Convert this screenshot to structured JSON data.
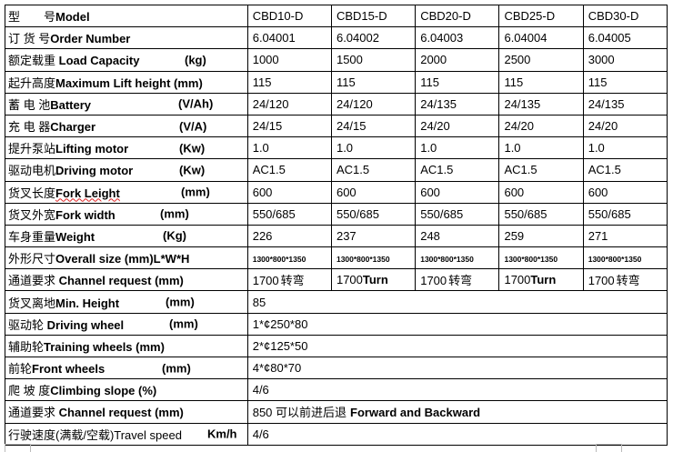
{
  "spec_table": {
    "rows": [
      {
        "cn": "型　　号",
        "en": "Model",
        "unit": "",
        "values": [
          "CBD10-D",
          "CBD15-D",
          "CBD20-D",
          "CBD25-D",
          "CBD30-D"
        ]
      },
      {
        "cn": "订 货 号",
        "en": "Order Number",
        "unit": "",
        "values": [
          "6.04001",
          "6.04002",
          "6.04003",
          "6.04004",
          "6.04005"
        ]
      },
      {
        "cn": "额定载重 ",
        "en": "Load Capacity",
        "unit": "(kg)",
        "values": [
          "1000",
          "1500",
          "2000",
          "2500",
          "3000"
        ]
      },
      {
        "cn": "起升高度",
        "en": "Maximum Lift height (mm)",
        "unit": "",
        "values": [
          "115",
          "115",
          "115",
          "115",
          "115"
        ]
      },
      {
        "cn": "蓄 电 池",
        "en": "Battery",
        "unit": "(V/Ah)",
        "values": [
          "24/120",
          "24/120",
          "24/135",
          "24/135",
          "24/135"
        ]
      },
      {
        "cn": "充 电 器",
        "en": "Charger",
        "unit": "(V/A)",
        "values": [
          "24/15",
          "24/15",
          "24/20",
          "24/20",
          "24/20"
        ]
      },
      {
        "cn": "提升泵站",
        "en": "Lifting motor",
        "unit": "(Kw)",
        "values": [
          "1.0",
          "1.0",
          "1.0",
          "1.0",
          "1.0"
        ]
      },
      {
        "cn": "驱动电机",
        "en": "Driving motor",
        "unit": "(Kw)",
        "values": [
          "AC1.5",
          "AC1.5",
          "AC1.5",
          "AC1.5",
          "AC1.5"
        ]
      },
      {
        "cn": "货叉长度",
        "en": "Fork Leight",
        "unit": "(mm)",
        "values": [
          "600",
          "600",
          "600",
          "600",
          "600"
        ]
      },
      {
        "cn": "货叉外宽",
        "en": "Fork width",
        "unit": "(mm)",
        "values": [
          "550/685",
          "550/685",
          "550/685",
          "550/685",
          "550/685"
        ]
      },
      {
        "cn": "车身重量",
        "en": "Weight",
        "unit": "(Kg)",
        "values": [
          "226",
          "237",
          "248",
          "259",
          "271"
        ]
      },
      {
        "cn": "外形尺寸",
        "en": "Overall size (mm)L*W*H",
        "unit": "",
        "values": [
          "1300*800*1350",
          "1300*800*1350",
          "1300*800*1350",
          "1300*800*1350",
          "1300*800*1350"
        ]
      },
      {
        "cn": "通道要求 ",
        "en": "Channel request   (mm)",
        "unit": "",
        "values": [
          "1700",
          "1700",
          "1700",
          "1700",
          "1700"
        ],
        "suffixes": [
          "转弯",
          "Turn",
          "转弯",
          "Turn",
          "转弯"
        ]
      },
      {
        "cn": "货叉离地",
        "en": "Min. Height",
        "unit": "(mm)",
        "value": "85"
      },
      {
        "cn": "驱动轮 ",
        "en": "Driving wheel",
        "unit": "(mm)",
        "value": "1*¢250*80"
      },
      {
        "cn": "辅助轮",
        "en": "Training wheels (mm)",
        "unit": "",
        "value": "2*¢125*50"
      },
      {
        "cn": "前轮",
        "en": "Front wheels",
        "unit": "(mm)",
        "value": "4*¢80*70"
      },
      {
        "cn": "爬 坡 度",
        "en": "Climbing slope (%)",
        "unit": "",
        "value": "4/6"
      },
      {
        "cn": "通道要求 ",
        "en": "Channel request   (mm)",
        "unit": "",
        "value": "850 可以前进后退",
        "value_en": "Forward and Backward"
      },
      {
        "cn": "行驶速度(满载/空载)Travel speed",
        "en": "",
        "unit": "Km/h",
        "value": " 4/6"
      }
    ]
  }
}
